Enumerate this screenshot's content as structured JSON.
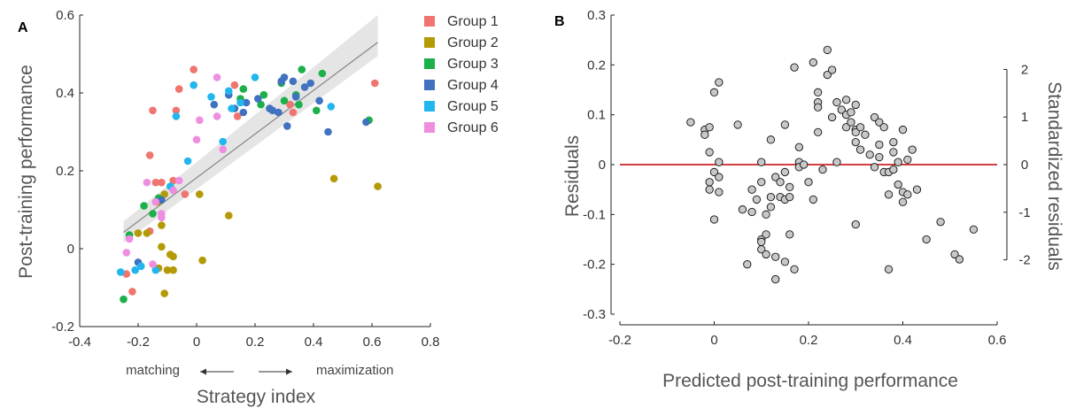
{
  "chart_data": [
    {
      "panel_label": "A",
      "type": "scatter",
      "xlabel": "Strategy index",
      "ylabel": "Post-training performance",
      "xlim": [
        -0.4,
        0.8
      ],
      "ylim": [
        -0.2,
        0.6
      ],
      "xticks": [
        "-0.4",
        "-0.2",
        "0",
        "0.2",
        "0.4",
        "0.6",
        "0.8"
      ],
      "yticks": [
        "-0.2",
        "0",
        "0.2",
        "0.4",
        "0.6"
      ],
      "annotation": {
        "left": "matching",
        "right": "maximization"
      },
      "legend_position": "top-right",
      "fit_line": {
        "x": [
          -0.25,
          0.62
        ],
        "y": [
          0.042,
          0.53
        ],
        "ci_band": true,
        "band_low": [
          0.015,
          0.495
        ],
        "band_high": [
          0.07,
          0.6
        ]
      },
      "series": [
        {
          "name": "Group 1",
          "color": "#f07470",
          "points": [
            [
              -0.24,
              -0.065
            ],
            [
              -0.22,
              -0.11
            ],
            [
              -0.15,
              0.355
            ],
            [
              -0.16,
              0.24
            ],
            [
              -0.14,
              0.17
            ],
            [
              -0.16,
              0.045
            ],
            [
              -0.12,
              0.17
            ],
            [
              -0.08,
              0.175
            ],
            [
              -0.07,
              0.355
            ],
            [
              -0.06,
              0.41
            ],
            [
              -0.04,
              0.14
            ],
            [
              -0.01,
              0.46
            ],
            [
              0.13,
              0.42
            ],
            [
              0.14,
              0.34
            ],
            [
              0.32,
              0.37
            ],
            [
              0.33,
              0.35
            ],
            [
              0.61,
              0.425
            ]
          ]
        },
        {
          "name": "Group 2",
          "color": "#b39a06",
          "points": [
            [
              -0.13,
              -0.05
            ],
            [
              -0.12,
              0.005
            ],
            [
              -0.12,
              0.06
            ],
            [
              -0.11,
              -0.115
            ],
            [
              -0.1,
              -0.055
            ],
            [
              -0.09,
              -0.015
            ],
            [
              -0.08,
              -0.02
            ],
            [
              -0.08,
              -0.055
            ],
            [
              -0.11,
              0.14
            ],
            [
              -0.13,
              0.12
            ],
            [
              -0.17,
              0.04
            ],
            [
              -0.2,
              0.04
            ],
            [
              0.01,
              0.14
            ],
            [
              0.02,
              -0.03
            ],
            [
              0.11,
              0.085
            ],
            [
              0.47,
              0.18
            ],
            [
              0.62,
              0.16
            ]
          ]
        },
        {
          "name": "Group 3",
          "color": "#1cb04a",
          "points": [
            [
              -0.25,
              -0.13
            ],
            [
              -0.23,
              0.035
            ],
            [
              -0.18,
              0.11
            ],
            [
              -0.15,
              0.09
            ],
            [
              -0.13,
              0.13
            ],
            [
              0.15,
              0.385
            ],
            [
              0.16,
              0.41
            ],
            [
              0.22,
              0.37
            ],
            [
              0.23,
              0.395
            ],
            [
              0.29,
              0.425
            ],
            [
              0.3,
              0.38
            ],
            [
              0.34,
              0.395
            ],
            [
              0.35,
              0.37
            ],
            [
              0.36,
              0.46
            ],
            [
              0.41,
              0.355
            ],
            [
              0.43,
              0.45
            ],
            [
              0.59,
              0.33
            ]
          ]
        },
        {
          "name": "Group 4",
          "color": "#4072c0",
          "points": [
            [
              -0.2,
              -0.035
            ],
            [
              -0.12,
              0.125
            ],
            [
              0.06,
              0.37
            ],
            [
              0.11,
              0.395
            ],
            [
              0.13,
              0.36
            ],
            [
              0.17,
              0.375
            ],
            [
              0.16,
              0.35
            ],
            [
              0.21,
              0.385
            ],
            [
              0.25,
              0.36
            ],
            [
              0.26,
              0.355
            ],
            [
              0.28,
              0.35
            ],
            [
              0.29,
              0.43
            ],
            [
              0.3,
              0.44
            ],
            [
              0.31,
              0.315
            ],
            [
              0.33,
              0.43
            ],
            [
              0.34,
              0.39
            ],
            [
              0.37,
              0.415
            ],
            [
              0.39,
              0.425
            ],
            [
              0.42,
              0.38
            ],
            [
              0.45,
              0.3
            ],
            [
              0.58,
              0.325
            ]
          ]
        },
        {
          "name": "Group 5",
          "color": "#22b6ee",
          "points": [
            [
              -0.26,
              -0.06
            ],
            [
              -0.21,
              -0.055
            ],
            [
              -0.19,
              -0.045
            ],
            [
              -0.14,
              -0.055
            ],
            [
              -0.09,
              0.16
            ],
            [
              -0.07,
              0.34
            ],
            [
              -0.03,
              0.225
            ],
            [
              -0.01,
              0.42
            ],
            [
              0.05,
              0.39
            ],
            [
              0.09,
              0.275
            ],
            [
              0.11,
              0.405
            ],
            [
              0.12,
              0.36
            ],
            [
              0.15,
              0.375
            ],
            [
              0.2,
              0.44
            ],
            [
              0.46,
              0.365
            ]
          ]
        },
        {
          "name": "Group 6",
          "color": "#ef8ee0",
          "points": [
            [
              -0.24,
              -0.01
            ],
            [
              -0.23,
              0.025
            ],
            [
              -0.17,
              0.17
            ],
            [
              -0.15,
              -0.04
            ],
            [
              -0.14,
              0.12
            ],
            [
              -0.12,
              0.09
            ],
            [
              -0.12,
              0.08
            ],
            [
              -0.08,
              0.15
            ],
            [
              -0.06,
              0.175
            ],
            [
              0.0,
              0.28
            ],
            [
              0.01,
              0.33
            ],
            [
              0.07,
              0.44
            ],
            [
              0.07,
              0.34
            ],
            [
              0.09,
              0.255
            ]
          ]
        }
      ]
    },
    {
      "panel_label": "B",
      "type": "scatter",
      "xlabel": "Predicted post-training performance",
      "ylabel": "Residuals",
      "ylabel_right": "Standardized residuals",
      "xlim": [
        -0.2,
        0.6
      ],
      "ylim": [
        -0.3,
        0.3
      ],
      "xticks": [
        "-0.2",
        "0",
        "0.2",
        "0.4",
        "0.6"
      ],
      "yticks": [
        "-0.3",
        "-0.2",
        "-0.1",
        "0",
        "0.1",
        "0.2",
        "0.3"
      ],
      "yticks_right": [
        "-2",
        "-1",
        "0",
        "1",
        "2"
      ],
      "zero_line_color": "#c00000",
      "marker_fill": "#c8c8c8",
      "points": [
        [
          -0.05,
          0.085
        ],
        [
          -0.02,
          0.07
        ],
        [
          -0.02,
          0.06
        ],
        [
          -0.01,
          0.075
        ],
        [
          0.0,
          0.145
        ],
        [
          0.01,
          0.165
        ],
        [
          -0.01,
          0.025
        ],
        [
          0.0,
          -0.015
        ],
        [
          0.01,
          -0.025
        ],
        [
          0.01,
          0.005
        ],
        [
          -0.01,
          -0.035
        ],
        [
          -0.01,
          -0.05
        ],
        [
          0.01,
          -0.055
        ],
        [
          0.0,
          -0.11
        ],
        [
          0.05,
          0.08
        ],
        [
          0.06,
          -0.09
        ],
        [
          0.07,
          -0.2
        ],
        [
          0.08,
          -0.05
        ],
        [
          0.08,
          -0.095
        ],
        [
          0.09,
          -0.07
        ],
        [
          0.1,
          -0.035
        ],
        [
          0.1,
          0.005
        ],
        [
          0.1,
          -0.15
        ],
        [
          0.1,
          -0.17
        ],
        [
          0.1,
          -0.155
        ],
        [
          0.11,
          -0.18
        ],
        [
          0.11,
          -0.14
        ],
        [
          0.11,
          -0.1
        ],
        [
          0.12,
          -0.065
        ],
        [
          0.12,
          0.05
        ],
        [
          0.12,
          -0.085
        ],
        [
          0.13,
          -0.025
        ],
        [
          0.13,
          -0.185
        ],
        [
          0.13,
          -0.23
        ],
        [
          0.14,
          -0.035
        ],
        [
          0.14,
          -0.065
        ],
        [
          0.15,
          -0.015
        ],
        [
          0.15,
          -0.195
        ],
        [
          0.15,
          0.08
        ],
        [
          0.15,
          -0.07
        ],
        [
          0.16,
          -0.045
        ],
        [
          0.16,
          -0.14
        ],
        [
          0.16,
          -0.065
        ],
        [
          0.17,
          -0.21
        ],
        [
          0.17,
          0.195
        ],
        [
          0.18,
          0.005
        ],
        [
          0.18,
          -0.005
        ],
        [
          0.18,
          0.035
        ],
        [
          0.19,
          0.0
        ],
        [
          0.2,
          -0.035
        ],
        [
          0.21,
          0.205
        ],
        [
          0.21,
          -0.07
        ],
        [
          0.22,
          0.145
        ],
        [
          0.22,
          0.125
        ],
        [
          0.22,
          0.065
        ],
        [
          0.22,
          0.115
        ],
        [
          0.23,
          -0.01
        ],
        [
          0.24,
          0.23
        ],
        [
          0.24,
          0.18
        ],
        [
          0.25,
          0.19
        ],
        [
          0.25,
          0.095
        ],
        [
          0.26,
          0.125
        ],
        [
          0.26,
          0.005
        ],
        [
          0.27,
          0.11
        ],
        [
          0.28,
          0.13
        ],
        [
          0.28,
          0.1
        ],
        [
          0.28,
          0.075
        ],
        [
          0.29,
          0.105
        ],
        [
          0.29,
          0.085
        ],
        [
          0.3,
          0.07
        ],
        [
          0.3,
          0.12
        ],
        [
          0.3,
          0.065
        ],
        [
          0.3,
          0.045
        ],
        [
          0.3,
          -0.12
        ],
        [
          0.31,
          0.03
        ],
        [
          0.31,
          0.075
        ],
        [
          0.32,
          0.06
        ],
        [
          0.33,
          0.02
        ],
        [
          0.34,
          0.095
        ],
        [
          0.34,
          -0.005
        ],
        [
          0.35,
          0.085
        ],
        [
          0.35,
          0.04
        ],
        [
          0.35,
          0.015
        ],
        [
          0.36,
          0.075
        ],
        [
          0.36,
          -0.015
        ],
        [
          0.37,
          -0.06
        ],
        [
          0.37,
          -0.21
        ],
        [
          0.37,
          -0.015
        ],
        [
          0.38,
          0.045
        ],
        [
          0.38,
          0.025
        ],
        [
          0.38,
          -0.01
        ],
        [
          0.39,
          0.005
        ],
        [
          0.39,
          -0.04
        ],
        [
          0.4,
          -0.055
        ],
        [
          0.4,
          -0.075
        ],
        [
          0.4,
          0.07
        ],
        [
          0.41,
          -0.06
        ],
        [
          0.41,
          0.01
        ],
        [
          0.42,
          0.03
        ],
        [
          0.43,
          -0.05
        ],
        [
          0.45,
          -0.15
        ],
        [
          0.48,
          -0.115
        ],
        [
          0.51,
          -0.18
        ],
        [
          0.52,
          -0.19
        ],
        [
          0.55,
          -0.13
        ]
      ]
    }
  ]
}
